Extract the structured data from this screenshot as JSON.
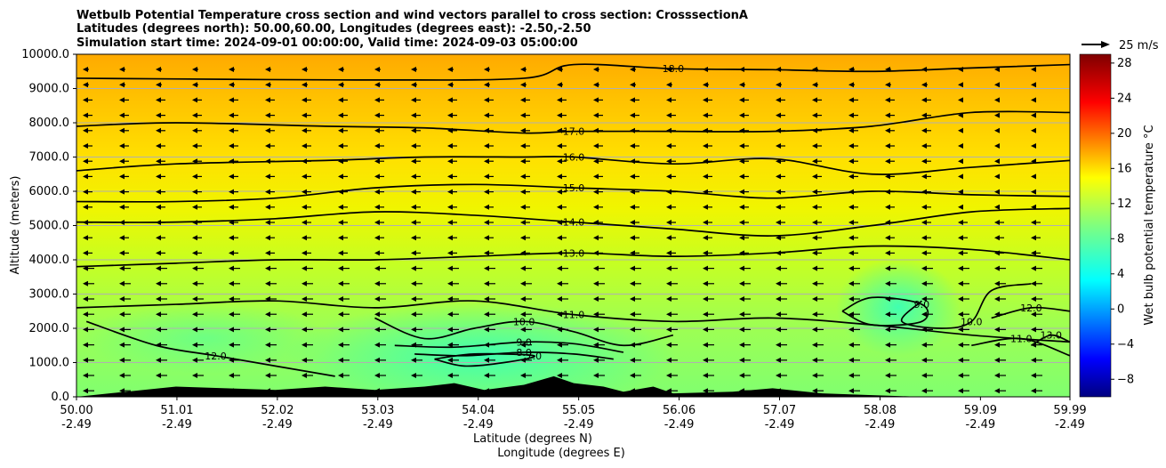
{
  "chart_data": {
    "type": "contour",
    "title_lines": [
      "Wetbulb Potential Temperature cross section and wind vectors parallel to cross section: CrosssectionA",
      "Latitudes (degrees north): 50.00,60.00, Longitudes (degrees east): -2.50,-2.50",
      "Simulation start time: 2024-09-01 00:00:00, Valid time: 2024-09-03 05:00:00"
    ],
    "xlabel": "Latitude (degrees N)",
    "xlabel2": "Longitude (degrees E)",
    "ylabel": "Altitude (meters)",
    "xlim": [
      50.0,
      59.99
    ],
    "ylim": [
      0,
      10000
    ],
    "x_ticks": [
      {
        "value": 50.0,
        "lat": "50.00",
        "lon": "-2.49"
      },
      {
        "value": 51.01,
        "lat": "51.01",
        "lon": "-2.49"
      },
      {
        "value": 52.02,
        "lat": "52.02",
        "lon": "-2.49"
      },
      {
        "value": 53.03,
        "lat": "53.03",
        "lon": "-2.49"
      },
      {
        "value": 54.04,
        "lat": "54.04",
        "lon": "-2.49"
      },
      {
        "value": 55.05,
        "lat": "55.05",
        "lon": "-2.49"
      },
      {
        "value": 56.06,
        "lat": "56.06",
        "lon": "-2.49"
      },
      {
        "value": 57.07,
        "lat": "57.07",
        "lon": "-2.49"
      },
      {
        "value": 58.08,
        "lat": "58.08",
        "lon": "-2.49"
      },
      {
        "value": 59.09,
        "lat": "59.09",
        "lon": "-2.49"
      },
      {
        "value": 59.99,
        "lat": "59.99",
        "lon": "-2.49"
      }
    ],
    "y_ticks": [
      {
        "value": 0,
        "label": "0.0"
      },
      {
        "value": 1000,
        "label": "1000.0"
      },
      {
        "value": 2000,
        "label": "2000.0"
      },
      {
        "value": 3000,
        "label": "3000.0"
      },
      {
        "value": 4000,
        "label": "4000.0"
      },
      {
        "value": 5000,
        "label": "5000.0"
      },
      {
        "value": 6000,
        "label": "6000.0"
      },
      {
        "value": 7000,
        "label": "7000.0"
      },
      {
        "value": 8000,
        "label": "8000.0"
      },
      {
        "value": 9000,
        "label": "9000.0"
      },
      {
        "value": 10000,
        "label": "10000.0"
      }
    ],
    "grid": true,
    "contour_lines": [
      {
        "level": 18.0,
        "label": "18.0",
        "points": [
          [
            50.0,
            9300
          ],
          [
            51.5,
            9270
          ],
          [
            53.0,
            9250
          ],
          [
            54.5,
            9300
          ],
          [
            55.0,
            9700
          ],
          [
            56.0,
            9580
          ],
          [
            57.0,
            9550
          ],
          [
            58.0,
            9500
          ],
          [
            59.0,
            9600
          ],
          [
            59.99,
            9700
          ]
        ]
      },
      {
        "level": 17.0,
        "label": "17.0",
        "points": [
          [
            50.0,
            7900
          ],
          [
            51.0,
            8000
          ],
          [
            52.5,
            7900
          ],
          [
            53.5,
            7850
          ],
          [
            54.5,
            7700
          ],
          [
            55.0,
            7750
          ],
          [
            56.0,
            7750
          ],
          [
            57.0,
            7750
          ],
          [
            58.0,
            7900
          ],
          [
            59.0,
            8300
          ],
          [
            59.99,
            8300
          ]
        ]
      },
      {
        "level": 16.0,
        "label": "16.0",
        "points": [
          [
            50.0,
            6600
          ],
          [
            51.0,
            6800
          ],
          [
            52.5,
            6900
          ],
          [
            53.5,
            7000
          ],
          [
            54.5,
            7000
          ],
          [
            55.0,
            7000
          ],
          [
            56.0,
            6800
          ],
          [
            57.0,
            6950
          ],
          [
            58.0,
            6500
          ],
          [
            59.0,
            6700
          ],
          [
            59.99,
            6900
          ]
        ]
      },
      {
        "level": 15.0,
        "label": "15.0",
        "points": [
          [
            50.0,
            5700
          ],
          [
            51.0,
            5700
          ],
          [
            52.0,
            5800
          ],
          [
            53.0,
            6100
          ],
          [
            54.0,
            6200
          ],
          [
            55.0,
            6100
          ],
          [
            56.0,
            6000
          ],
          [
            57.0,
            5800
          ],
          [
            58.0,
            6000
          ],
          [
            59.0,
            5900
          ],
          [
            59.99,
            5850
          ]
        ]
      },
      {
        "level": 14.0,
        "label": "14.0",
        "points": [
          [
            50.0,
            5100
          ],
          [
            51.0,
            5100
          ],
          [
            52.0,
            5200
          ],
          [
            53.0,
            5400
          ],
          [
            54.0,
            5300
          ],
          [
            55.0,
            5100
          ],
          [
            56.0,
            4900
          ],
          [
            57.0,
            4700
          ],
          [
            58.0,
            5000
          ],
          [
            59.0,
            5400
          ],
          [
            59.99,
            5500
          ]
        ]
      },
      {
        "level": 13.0,
        "label": "13.0",
        "points": [
          [
            50.0,
            3800
          ],
          [
            51.0,
            3900
          ],
          [
            52.0,
            4000
          ],
          [
            53.0,
            4000
          ],
          [
            54.0,
            4100
          ],
          [
            55.0,
            4200
          ],
          [
            56.0,
            4100
          ],
          [
            57.0,
            4200
          ],
          [
            58.0,
            4400
          ],
          [
            59.0,
            4300
          ],
          [
            59.99,
            4000
          ]
        ]
      },
      {
        "level": 11.0,
        "label": "11.0",
        "points": [
          [
            50.0,
            2600
          ],
          [
            51.0,
            2700
          ],
          [
            52.0,
            2800
          ],
          [
            53.0,
            2600
          ],
          [
            54.0,
            2800
          ],
          [
            55.0,
            2400
          ],
          [
            56.0,
            2200
          ],
          [
            57.0,
            2300
          ],
          [
            58.0,
            2100
          ],
          [
            59.0,
            1800
          ],
          [
            59.99,
            1600
          ]
        ]
      },
      {
        "level": 10.0,
        "label": "10.0",
        "points": [
          [
            53.0,
            2300
          ],
          [
            53.5,
            1700
          ],
          [
            54.0,
            2000
          ],
          [
            54.5,
            2200
          ],
          [
            55.0,
            1900
          ],
          [
            55.5,
            1500
          ],
          [
            56.0,
            1800
          ]
        ]
      },
      {
        "level": 9.0,
        "label": "9.0",
        "points": [
          [
            53.2,
            1500
          ],
          [
            53.8,
            1450
          ],
          [
            54.5,
            1600
          ],
          [
            55.0,
            1550
          ],
          [
            55.5,
            1300
          ]
        ]
      },
      {
        "level": 8.0,
        "label": "8.0",
        "points": [
          [
            53.4,
            1250
          ],
          [
            53.9,
            1200
          ],
          [
            54.5,
            1300
          ],
          [
            55.0,
            1250
          ],
          [
            55.4,
            1100
          ]
        ]
      },
      {
        "level": 7.0,
        "label": "7.0",
        "points": [
          [
            53.6,
            1100
          ],
          [
            53.9,
            900
          ],
          [
            54.3,
            1000
          ],
          [
            54.6,
            1200
          ],
          [
            54.0,
            1250
          ],
          [
            53.6,
            1100
          ]
        ]
      },
      {
        "level": 12.0,
        "label": "12.0",
        "points": [
          [
            50.1,
            2200
          ],
          [
            50.8,
            1500
          ],
          [
            51.4,
            1200
          ],
          [
            52.0,
            900
          ],
          [
            52.6,
            600
          ]
        ]
      },
      {
        "level": 10.0,
        "label": "10.0",
        "points": [
          [
            58.5,
            2800
          ],
          [
            58.3,
            2200
          ],
          [
            58.7,
            2000
          ],
          [
            59.0,
            2200
          ],
          [
            59.2,
            3100
          ],
          [
            59.6,
            3300
          ]
        ]
      },
      {
        "level": 9.0,
        "label": "9.0",
        "points": [
          [
            57.7,
            2500
          ],
          [
            58.0,
            2100
          ],
          [
            58.5,
            2200
          ],
          [
            58.5,
            2700
          ],
          [
            58.0,
            2900
          ],
          [
            57.7,
            2500
          ]
        ]
      },
      {
        "level": 11.0,
        "label": "11.0",
        "points": [
          [
            59.0,
            1500
          ],
          [
            59.5,
            1700
          ],
          [
            59.99,
            1200
          ]
        ]
      },
      {
        "level": 12.0,
        "label": "12.0",
        "points": [
          [
            59.2,
            2300
          ],
          [
            59.6,
            2600
          ],
          [
            59.99,
            2500
          ]
        ]
      },
      {
        "level": 13.0,
        "label": "13.0",
        "points": [
          [
            59.6,
            1500
          ],
          [
            59.8,
            1800
          ],
          [
            59.99,
            1600
          ]
        ]
      }
    ],
    "terrain": [
      [
        50.0,
        0
      ],
      [
        50.5,
        150
      ],
      [
        51.0,
        300
      ],
      [
        51.5,
        250
      ],
      [
        52.0,
        200
      ],
      [
        52.5,
        300
      ],
      [
        53.0,
        200
      ],
      [
        53.5,
        300
      ],
      [
        53.8,
        400
      ],
      [
        54.1,
        200
      ],
      [
        54.5,
        350
      ],
      [
        54.8,
        600
      ],
      [
        55.0,
        400
      ],
      [
        55.3,
        300
      ],
      [
        55.5,
        150
      ],
      [
        55.8,
        300
      ],
      [
        56.0,
        100
      ],
      [
        56.6,
        150
      ],
      [
        57.0,
        250
      ],
      [
        57.5,
        100
      ],
      [
        58.0,
        50
      ],
      [
        58.5,
        0
      ],
      [
        59.99,
        0
      ]
    ],
    "colorbar": {
      "label": "Wet bulb potential temperature $^\\circ$C",
      "ticks": [
        "28",
        "24",
        "20",
        "16",
        "12",
        "8",
        "4",
        "0",
        "−4",
        "−8"
      ],
      "tick_values": [
        28,
        24,
        20,
        16,
        12,
        8,
        4,
        0,
        -4,
        -8
      ],
      "range": [
        -10,
        29
      ],
      "colormap": "jet"
    },
    "quiver_key": {
      "label": "25 m/s",
      "value": 25
    },
    "wind_vectors": "leftward arrows across most of the domain, stronger in mid troposphere"
  }
}
